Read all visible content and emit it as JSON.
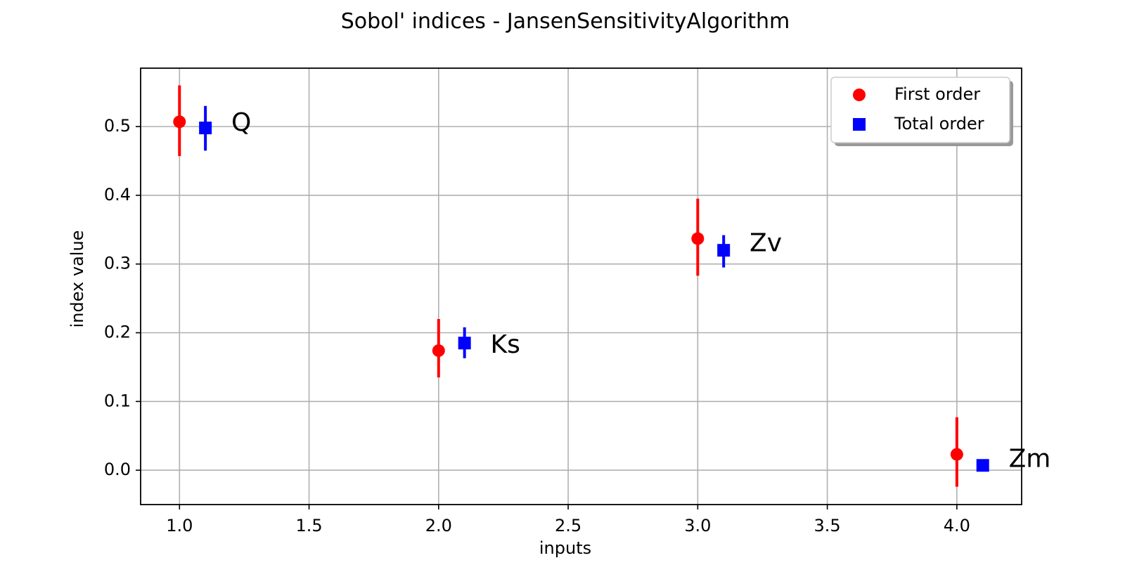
{
  "chart_data": {
    "type": "scatter",
    "title": "Sobol' indices - JansenSensitivityAlgorithm",
    "xlabel": "inputs",
    "ylabel": "index value",
    "xlim": [
      0.85,
      4.25
    ],
    "ylim": [
      -0.05,
      0.585
    ],
    "xticks": [
      "1.0",
      "1.5",
      "2.0",
      "2.5",
      "3.0",
      "3.5",
      "4.0"
    ],
    "xtick_values": [
      1.0,
      1.5,
      2.0,
      2.5,
      3.0,
      3.5,
      4.0
    ],
    "yticks": [
      "0.0",
      "0.1",
      "0.2",
      "0.3",
      "0.4",
      "0.5"
    ],
    "ytick_values": [
      0.0,
      0.1,
      0.2,
      0.3,
      0.4,
      0.5
    ],
    "grid": true,
    "legend_position": "top-right",
    "series": [
      {
        "name": "First order",
        "marker": "circle",
        "color": "#ff0000",
        "points": [
          {
            "x": 1.0,
            "y": 0.507,
            "low": 0.457,
            "high": 0.56
          },
          {
            "x": 2.0,
            "y": 0.174,
            "low": 0.135,
            "high": 0.22
          },
          {
            "x": 3.0,
            "y": 0.337,
            "low": 0.283,
            "high": 0.395
          },
          {
            "x": 4.0,
            "y": 0.023,
            "low": -0.024,
            "high": 0.077
          }
        ]
      },
      {
        "name": "Total order",
        "marker": "square",
        "color": "#0000ff",
        "points": [
          {
            "x": 1.1,
            "y": 0.498,
            "low": 0.465,
            "high": 0.53
          },
          {
            "x": 2.1,
            "y": 0.185,
            "low": 0.163,
            "high": 0.208
          },
          {
            "x": 3.1,
            "y": 0.32,
            "low": 0.295,
            "high": 0.342
          },
          {
            "x": 4.1,
            "y": 0.007,
            "low": 0.002,
            "high": 0.012
          }
        ]
      }
    ],
    "annotations": [
      {
        "text": "Q",
        "x": 1.2,
        "y": 0.504
      },
      {
        "text": "Ks",
        "x": 2.2,
        "y": 0.181
      },
      {
        "text": "Zv",
        "x": 3.2,
        "y": 0.329
      },
      {
        "text": "Zm",
        "x": 4.2,
        "y": 0.015
      }
    ]
  }
}
